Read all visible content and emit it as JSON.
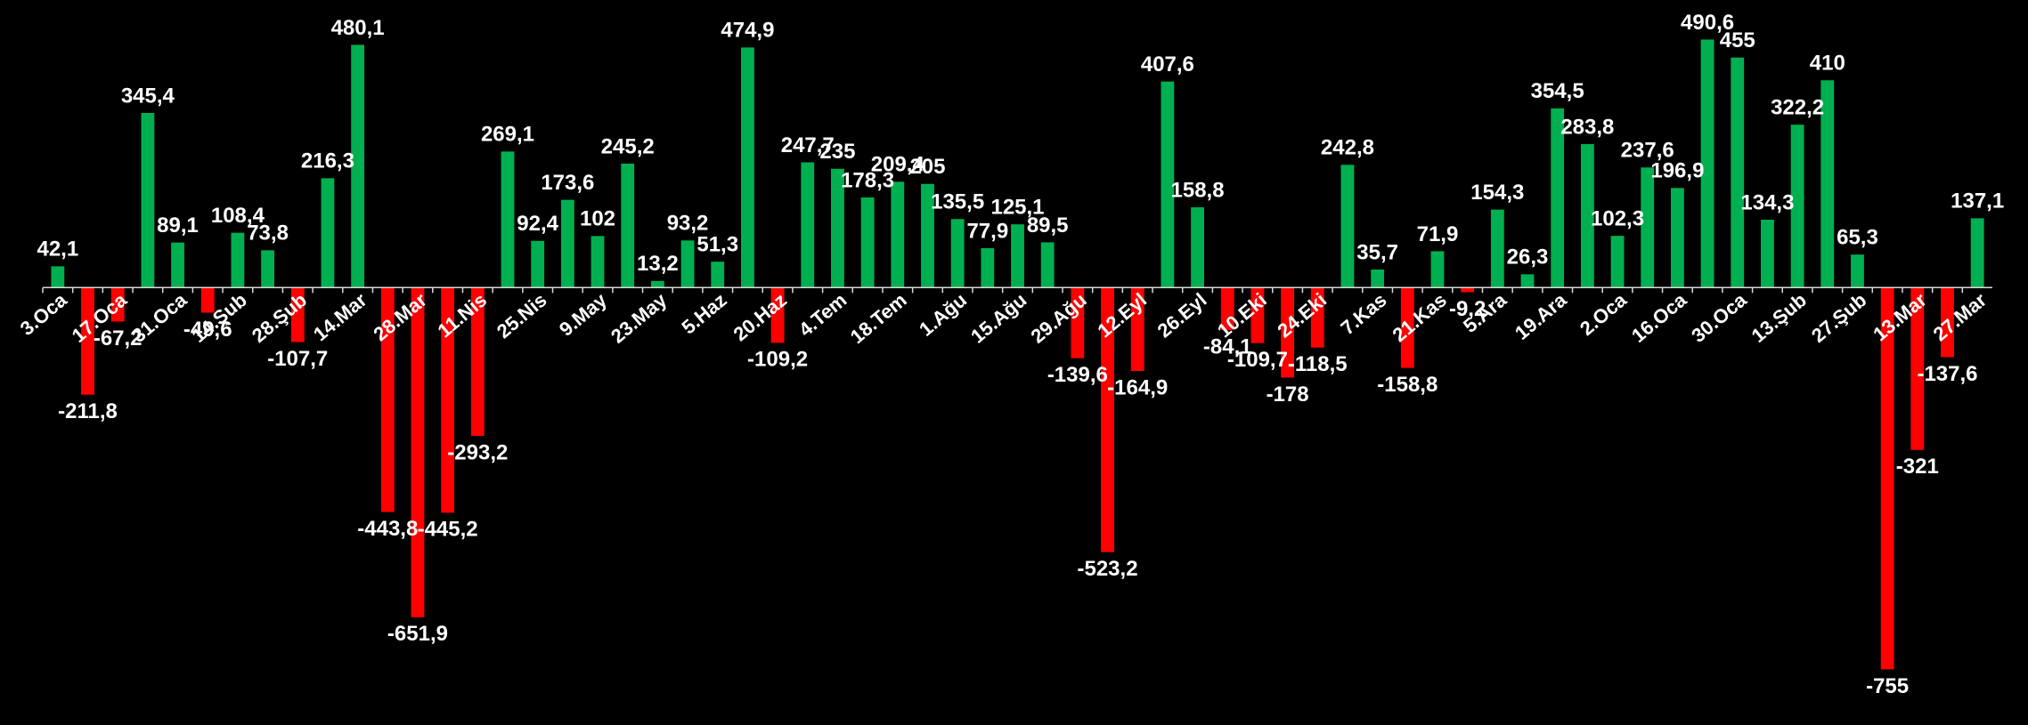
{
  "chart_data": {
    "type": "bar",
    "categories": [
      "3.Oca",
      null,
      "17.Oca",
      null,
      "31.Oca",
      null,
      "14.Şub",
      null,
      "28.Şub",
      null,
      "14.Mar",
      null,
      "28.Mar",
      null,
      "11.Nis",
      null,
      "25.Nis",
      null,
      "9.May",
      null,
      "23.May",
      null,
      "5.Haz",
      null,
      "20.Haz",
      null,
      "4.Tem",
      null,
      "18.Tem",
      null,
      "1.Ağu",
      null,
      "15.Ağu",
      null,
      "29.Ağu",
      null,
      "12.Eyl",
      null,
      "26.Eyl",
      null,
      "10.Eki",
      null,
      "24.Eki",
      null,
      "7.Kas",
      null,
      "21.Kas",
      null,
      "5.Ara",
      null,
      "19.Ara",
      null,
      "2.Oca",
      null,
      "16.Oca",
      null,
      "30.Oca",
      null,
      "13.Şub",
      null,
      "27.Şub",
      null,
      "13.Mar",
      null,
      "27.Mar"
    ],
    "values": [
      42.1,
      -211.8,
      -67.2,
      345.4,
      89.1,
      -49.6,
      108.4,
      73.8,
      -107.7,
      216.3,
      480.1,
      -443.8,
      -651.9,
      -445.2,
      -293.2,
      269.1,
      92.4,
      173.6,
      102,
      245.2,
      13.2,
      93.2,
      51.3,
      474.9,
      -109.2,
      247.7,
      235,
      178.3,
      209.4,
      205,
      135.5,
      77.9,
      125.1,
      89.5,
      -139.6,
      -523.2,
      -164.9,
      407.6,
      158.8,
      -84.1,
      -109.7,
      -178,
      -118.5,
      242.8,
      35.7,
      -158.8,
      71.9,
      -9.2,
      154.3,
      26.3,
      354.5,
      283.8,
      102.3,
      237.6,
      196.9,
      490.6,
      455,
      134.3,
      322.2,
      410,
      65.3,
      -755,
      -321,
      -137.6,
      137.1
    ],
    "value_labels": [
      "42,1",
      "-211,8",
      "-67,2",
      "345,4",
      "89,1",
      "-49,6",
      "108,4",
      "73,8",
      "-107,7",
      "216,3",
      "480,1",
      "-443,8",
      "-651,9",
      "-445,2",
      "-293,2",
      "269,1",
      "92,4",
      "173,6",
      "102",
      "245,2",
      "13,2",
      "93,2",
      "51,3",
      "474,9",
      "-109,2",
      "247,7",
      "235",
      "178,3",
      "209,4",
      "205",
      "135,5",
      "77,9",
      "125,1",
      "89,5",
      "-139,6",
      "-523,2",
      "-164,9",
      "407,6",
      "158,8",
      "-84,1",
      "-109,7",
      "-178",
      "-118,5",
      "242,8",
      "35,7",
      "-158,8",
      "71,9",
      "-9,2",
      "154,3",
      "26,3",
      "354,5",
      "283,8",
      "102,3",
      "237,6",
      "196,9",
      "490,6",
      "455",
      "134,3",
      "322,2",
      "410",
      "65,3",
      "-755",
      "-321",
      "-137,6",
      "137,1"
    ],
    "color": "#00b050",
    "negative_color": "#ff0000",
    "ylim": [
      -800,
      560
    ]
  }
}
